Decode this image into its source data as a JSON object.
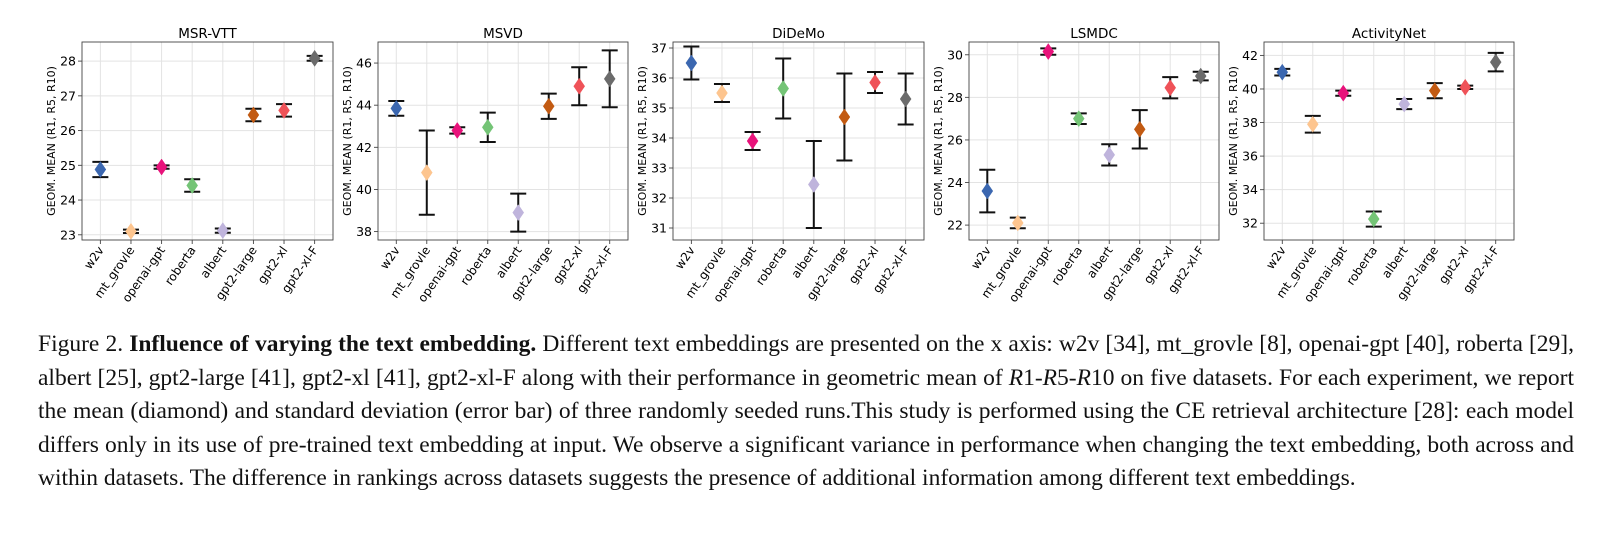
{
  "chart_data": [
    {
      "type": "scatter",
      "title": "MSR-VTT",
      "ylabel": "GEOM. MEAN (R1, R5, R10)",
      "categories": [
        "w2v",
        "mt_grovle",
        "openai-gpt",
        "roberta",
        "albert",
        "gpt2-large",
        "gpt2-xl",
        "gpt2-xl-F"
      ],
      "values": [
        24.88,
        23.1,
        24.95,
        24.42,
        23.12,
        26.45,
        26.58,
        28.08
      ],
      "error": [
        0.22,
        0.05,
        0.05,
        0.18,
        0.06,
        0.18,
        0.18,
        0.07
      ],
      "ylim": [
        22.85,
        28.55
      ],
      "yticks": [
        23,
        24,
        25,
        26,
        27,
        28
      ],
      "grid": true
    },
    {
      "type": "scatter",
      "title": "MSVD",
      "ylabel": "GEOM. MEAN (R1, R5, R10)",
      "categories": [
        "w2v",
        "mt_grovle",
        "openai-gpt",
        "roberta",
        "albert",
        "gpt2-large",
        "gpt2-xl",
        "gpt2-xl-F"
      ],
      "values": [
        43.85,
        40.8,
        42.8,
        42.95,
        38.9,
        43.95,
        44.9,
        45.25
      ],
      "error": [
        0.35,
        2.0,
        0.15,
        0.7,
        0.9,
        0.6,
        0.9,
        1.35
      ],
      "ylim": [
        37.6,
        47.0
      ],
      "yticks": [
        38,
        40,
        42,
        44,
        46
      ],
      "grid": true
    },
    {
      "type": "scatter",
      "title": "DiDeMo",
      "ylabel": "GEOM. MEAN (R1, R5, R10)",
      "categories": [
        "w2v",
        "mt_grovle",
        "openai-gpt",
        "roberta",
        "albert",
        "gpt2-large",
        "gpt2-xl",
        "gpt2-xl-F"
      ],
      "values": [
        36.5,
        35.5,
        33.9,
        35.65,
        32.45,
        34.7,
        35.85,
        35.3
      ],
      "error": [
        0.55,
        0.3,
        0.3,
        1.0,
        1.45,
        1.45,
        0.35,
        0.85
      ],
      "ylim": [
        30.6,
        37.2
      ],
      "yticks": [
        31,
        32,
        33,
        34,
        35,
        36,
        37
      ],
      "grid": true
    },
    {
      "type": "scatter",
      "title": "LSMDC",
      "ylabel": "GEOM. MEAN (R1, R5, R10)",
      "categories": [
        "w2v",
        "mt_grovle",
        "openai-gpt",
        "roberta",
        "albert",
        "gpt2-large",
        "gpt2-xl",
        "gpt2-xl-F"
      ],
      "values": [
        23.6,
        22.1,
        30.15,
        27.0,
        25.3,
        26.5,
        28.45,
        29.0
      ],
      "error": [
        1.0,
        0.25,
        0.15,
        0.25,
        0.5,
        0.9,
        0.5,
        0.2
      ],
      "ylim": [
        21.3,
        30.6
      ],
      "yticks": [
        22,
        24,
        26,
        28,
        30
      ],
      "grid": true
    },
    {
      "type": "scatter",
      "title": "ActivityNet",
      "ylabel": "GEOM. MEAN (R1, R5, R10)",
      "categories": [
        "w2v",
        "mt_grovle",
        "openai-gpt",
        "roberta",
        "albert",
        "gpt2-large",
        "gpt2-xl",
        "gpt2-xl-F"
      ],
      "values": [
        41.0,
        37.9,
        39.75,
        32.25,
        39.1,
        39.9,
        40.1,
        41.6
      ],
      "error": [
        0.2,
        0.5,
        0.15,
        0.45,
        0.3,
        0.45,
        0.1,
        0.55
      ],
      "ylim": [
        31.0,
        42.8
      ],
      "yticks": [
        32,
        34,
        36,
        38,
        40,
        42
      ],
      "grid": true
    }
  ],
  "palette": [
    "#3b67b0",
    "#fdc58f",
    "#e8137b",
    "#74c476",
    "#bfb4dc",
    "#c25a12",
    "#ef5258",
    "#6b6b6b"
  ],
  "caption": {
    "figure_label": "Figure 2.",
    "title": "Influence of varying the text embedding.",
    "text_1": "Different text embeddings are presented on the x axis: w2v [34], mt_grovle [8], openai-gpt [40], roberta [29], albert [25], gpt2-large [41], gpt2-xl [41], gpt2-xl-F along with their performance in geometric mean of",
    "math_r1": "R",
    "math_r1_sub": "1-",
    "math_r5": "R",
    "math_r5_sub": "5-",
    "math_r10": "R",
    "math_r10_sub": "10",
    "text_2": "on five datasets. For each experiment, we report the mean (diamond) and standard deviation (error bar) of three randomly seeded runs.This study is performed using the CE retrieval architecture [28]: each model differs only in its use of pre-trained text embedding at input. We observe a significant variance in performance when changing the text embedding, both across and within datasets. The difference in rankings across datasets suggests the presence of additional information among different text embeddings."
  }
}
